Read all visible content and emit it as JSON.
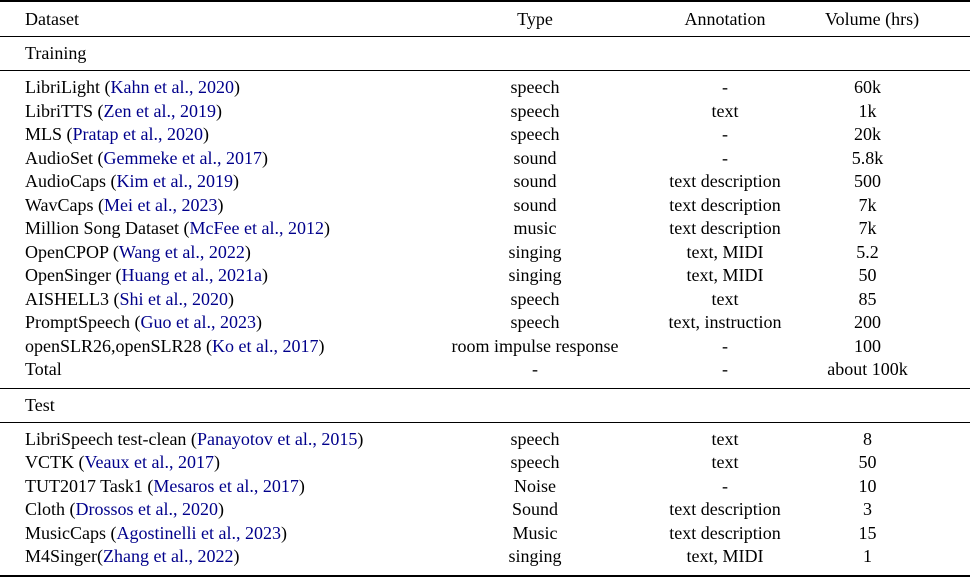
{
  "colors": {
    "citation": "#00008B",
    "text": "#000000",
    "rule": "#000000",
    "background": "#ffffff"
  },
  "table": {
    "columns": [
      {
        "label": "Dataset",
        "align": "left"
      },
      {
        "label": "Type",
        "align": "center"
      },
      {
        "label": "Annotation",
        "align": "center"
      },
      {
        "label": "Volume (hrs)",
        "align": "center"
      }
    ],
    "sections": [
      {
        "label": "Training",
        "rows": [
          {
            "dataset": "LibriLight (",
            "citation": "Kahn et al., 2020",
            "dataset_suffix": ")",
            "type": "speech",
            "annotation": "-",
            "volume": "60k"
          },
          {
            "dataset": "LibriTTS (",
            "citation": "Zen et al., 2019",
            "dataset_suffix": ")",
            "type": "speech",
            "annotation": "text",
            "volume": "1k"
          },
          {
            "dataset": "MLS (",
            "citation": "Pratap et al., 2020",
            "dataset_suffix": ")",
            "type": "speech",
            "annotation": "-",
            "volume": "20k"
          },
          {
            "dataset": "AudioSet (",
            "citation": "Gemmeke et al., 2017",
            "dataset_suffix": ")",
            "type": "sound",
            "annotation": "-",
            "volume": "5.8k"
          },
          {
            "dataset": "AudioCaps (",
            "citation": "Kim et al., 2019",
            "dataset_suffix": ")",
            "type": "sound",
            "annotation": "text description",
            "volume": "500"
          },
          {
            "dataset": "WavCaps (",
            "citation": "Mei et al., 2023",
            "dataset_suffix": ")",
            "type": "sound",
            "annotation": "text description",
            "volume": "7k"
          },
          {
            "dataset": "Million Song Dataset (",
            "citation": "McFee et al., 2012",
            "dataset_suffix": ")",
            "type": "music",
            "annotation": "text description",
            "volume": "7k"
          },
          {
            "dataset": "OpenCPOP (",
            "citation": "Wang et al., 2022",
            "dataset_suffix": ")",
            "type": "singing",
            "annotation": "text, MIDI",
            "volume": "5.2"
          },
          {
            "dataset": "OpenSinger (",
            "citation": "Huang et al., 2021a",
            "dataset_suffix": ")",
            "type": "singing",
            "annotation": "text, MIDI",
            "volume": "50"
          },
          {
            "dataset": "AISHELL3 (",
            "citation": "Shi et al., 2020",
            "dataset_suffix": ")",
            "type": "speech",
            "annotation": "text",
            "volume": "85"
          },
          {
            "dataset": "PromptSpeech (",
            "citation": "Guo et al., 2023",
            "dataset_suffix": ")",
            "type": "speech",
            "annotation": "text, instruction",
            "volume": "200"
          },
          {
            "dataset": "openSLR26,openSLR28 (",
            "citation": "Ko et al., 2017",
            "dataset_suffix": ")",
            "type": "room impulse response",
            "annotation": "-",
            "volume": "100"
          },
          {
            "dataset": "Total",
            "citation": "",
            "dataset_suffix": "",
            "type": "-",
            "annotation": "-",
            "volume": "about 100k"
          }
        ]
      },
      {
        "label": "Test",
        "rows": [
          {
            "dataset": "LibriSpeech test-clean (",
            "citation": "Panayotov et al., 2015",
            "dataset_suffix": ")",
            "type": "speech",
            "annotation": "text",
            "volume": "8"
          },
          {
            "dataset": "VCTK (",
            "citation": "Veaux et al., 2017",
            "dataset_suffix": ")",
            "type": "speech",
            "annotation": "text",
            "volume": "50"
          },
          {
            "dataset": "TUT2017 Task1 (",
            "citation": "Mesaros et al., 2017",
            "dataset_suffix": ")",
            "type": "Noise",
            "annotation": "-",
            "volume": "10"
          },
          {
            "dataset": "Cloth (",
            "citation": "Drossos et al., 2020",
            "dataset_suffix": ")",
            "type": "Sound",
            "annotation": "text description",
            "volume": "3"
          },
          {
            "dataset": "MusicCaps (",
            "citation": "Agostinelli et al., 2023",
            "dataset_suffix": ")",
            "type": "Music",
            "annotation": "text description",
            "volume": "15"
          },
          {
            "dataset": "M4Singer(",
            "citation": "Zhang et al., 2022",
            "dataset_suffix": ")",
            "type": "singing",
            "annotation": "text, MIDI",
            "volume": "1"
          }
        ]
      }
    ]
  }
}
